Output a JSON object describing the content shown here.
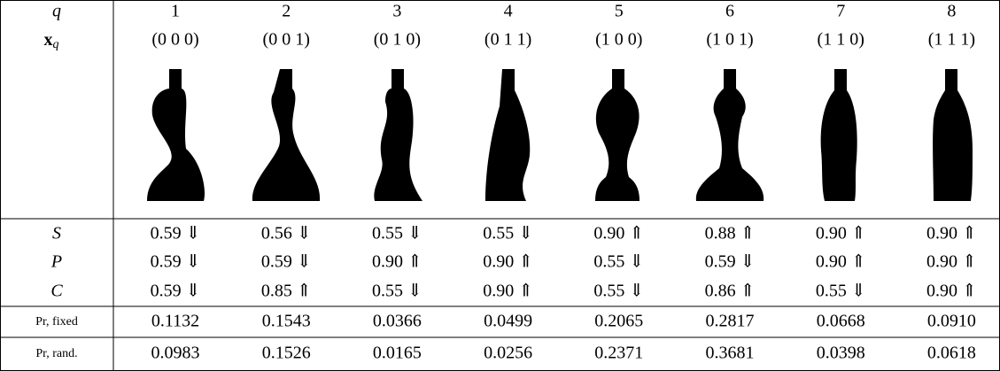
{
  "header": {
    "q_label": "q",
    "x_label": {
      "main": "x",
      "sub": "q"
    },
    "columns": [
      {
        "q": "1",
        "x": "(0 0 0)"
      },
      {
        "q": "2",
        "x": "(0 0 1)"
      },
      {
        "q": "3",
        "x": "(0 1 0)"
      },
      {
        "q": "4",
        "x": "(0 1 1)"
      },
      {
        "q": "5",
        "x": "(1 0 0)"
      },
      {
        "q": "6",
        "x": "(1 0 1)"
      },
      {
        "q": "7",
        "x": "(1 1 0)"
      },
      {
        "q": "8",
        "x": "(1 1 1)"
      }
    ]
  },
  "rows": [
    {
      "label": "S",
      "values": [
        "0.59 ⇓",
        "0.56 ⇓",
        "0.55 ⇓",
        "0.55 ⇓",
        "0.90 ⇑",
        "0.88 ⇑",
        "0.90 ⇑",
        "0.90 ⇑"
      ]
    },
    {
      "label": "P",
      "values": [
        "0.59 ⇓",
        "0.59 ⇓",
        "0.90 ⇑",
        "0.90 ⇑",
        "0.55 ⇓",
        "0.59 ⇓",
        "0.90 ⇑",
        "0.90 ⇑"
      ]
    },
    {
      "label": "C",
      "values": [
        "0.59 ⇓",
        "0.85 ⇑",
        "0.55 ⇓",
        "0.90 ⇑",
        "0.55 ⇓",
        "0.86 ⇑",
        "0.55 ⇓",
        "0.90 ⇑"
      ]
    },
    {
      "label": "Pr, fixed",
      "values": [
        "0.1132",
        "0.1543",
        "0.0366",
        "0.0499",
        "0.2065",
        "0.2817",
        "0.0668",
        "0.0910"
      ]
    },
    {
      "label": "Pr, rand.",
      "values": [
        "0.0983",
        "0.1526",
        "0.0165",
        "0.0256",
        "0.2371",
        "0.3681",
        "0.0398",
        "0.0618"
      ]
    }
  ]
}
